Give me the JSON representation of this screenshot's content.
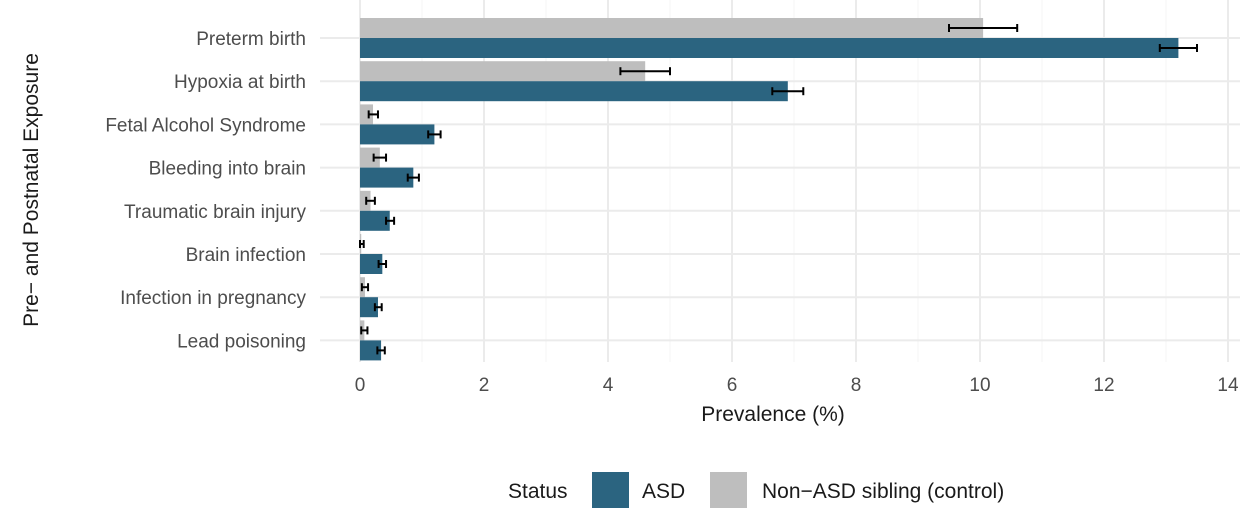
{
  "colors": {
    "asd": "#2b6480",
    "control": "#bebebe",
    "grid_major": "#ebebeb",
    "grid_minor": "#f4f4f4",
    "error_bar": "#000000"
  },
  "chart_data": {
    "type": "bar",
    "orientation": "horizontal",
    "xlabel": "Prevalence (%)",
    "ylabel": "Pre− and Postnatal Exposure",
    "xlim": [
      0,
      14
    ],
    "xticks": [
      0,
      2,
      4,
      6,
      8,
      10,
      12,
      14
    ],
    "grid": true,
    "legend_position": "bottom",
    "legend_title": "Status",
    "categories": [
      "Preterm birth",
      "Hypoxia at birth",
      "Fetal Alcohol Syndrome",
      "Bleeding into brain",
      "Traumatic brain injury",
      "Brain infection",
      "Infection in pregnancy",
      "Lead poisoning"
    ],
    "series": [
      {
        "name": "Non−ASD sibling (control)",
        "values": [
          10.05,
          4.6,
          0.21,
          0.32,
          0.17,
          0.02,
          0.08,
          0.07
        ],
        "err_low": [
          9.5,
          4.2,
          0.14,
          0.22,
          0.1,
          0.0,
          0.03,
          0.02
        ],
        "err_high": [
          10.6,
          5.0,
          0.29,
          0.42,
          0.24,
          0.06,
          0.13,
          0.12
        ]
      },
      {
        "name": "ASD",
        "values": [
          13.2,
          6.9,
          1.2,
          0.86,
          0.48,
          0.36,
          0.29,
          0.34
        ],
        "err_low": [
          12.9,
          6.65,
          1.1,
          0.77,
          0.42,
          0.3,
          0.24,
          0.28
        ],
        "err_high": [
          13.5,
          7.15,
          1.3,
          0.95,
          0.55,
          0.42,
          0.35,
          0.4
        ]
      }
    ]
  }
}
